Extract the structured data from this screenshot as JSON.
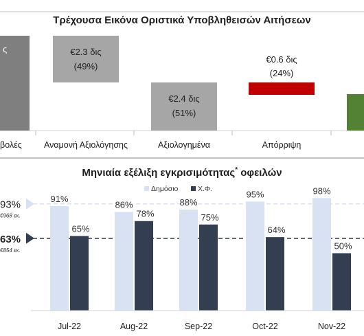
{
  "chart_data": [
    {
      "type": "bar",
      "title": "Τρέχουσα Εικόνα Οριστικά Υποβληθεισών Αιτήσεων",
      "categories": [
        "Υποβολές",
        "Αναμονή Αξιολόγησης",
        "Αξιολογημένα",
        "Απόρριψη",
        ""
      ],
      "label_fragments": {
        "first_category_visible": "βολές",
        "first_bar_visible": "ς"
      },
      "bars": [
        {
          "category": "Υποβολές",
          "label": "",
          "color": "#7f7f7f"
        },
        {
          "category": "Αναμονή Αξιολόγησης",
          "label_value": "€2.3 δις",
          "label_share": "(49%)",
          "color": "#a6a6a6"
        },
        {
          "category": "Αξιολογημένα",
          "label_value": "€2.4 δις",
          "label_share": "(51%)",
          "color": "#a6a6a6"
        },
        {
          "category": "Απόρριψη",
          "label_value": "€0.6 δις",
          "label_share": "(24%)",
          "color": "#c00000"
        },
        {
          "category": "",
          "label": "",
          "color": "#548235"
        }
      ]
    },
    {
      "type": "bar",
      "title": "Μηνιαία εξέλιξη εγκρισιμότητας",
      "title_superscript": "*",
      "title_suffix": "οφειλών",
      "categories": [
        "Jul-22",
        "Aug-22",
        "Sep-22",
        "Oct-22",
        "Nov-22"
      ],
      "series": [
        {
          "name": "Δημόσιο",
          "values": [
            91,
            86,
            88,
            95,
            98
          ],
          "labels": [
            "91%",
            "86%",
            "88%",
            "95%",
            "98%"
          ],
          "color": "#d9e2f3"
        },
        {
          "name": "Χ.Φ.",
          "values": [
            65,
            78,
            75,
            64,
            50
          ],
          "labels": [
            "65%",
            "78%",
            "75%",
            "64%",
            "50%"
          ],
          "color": "#333f50"
        }
      ],
      "reference_lines": [
        {
          "value": 93,
          "label": "93%",
          "note": "€968 εκ.",
          "color": "#d9e2f3",
          "style": "dashed"
        },
        {
          "value": 63,
          "label": "63%",
          "note": "€854 εκ.",
          "color": "#333f50",
          "style": "dashed"
        }
      ],
      "ylim": [
        0,
        100
      ],
      "legend_position": "top"
    }
  ]
}
